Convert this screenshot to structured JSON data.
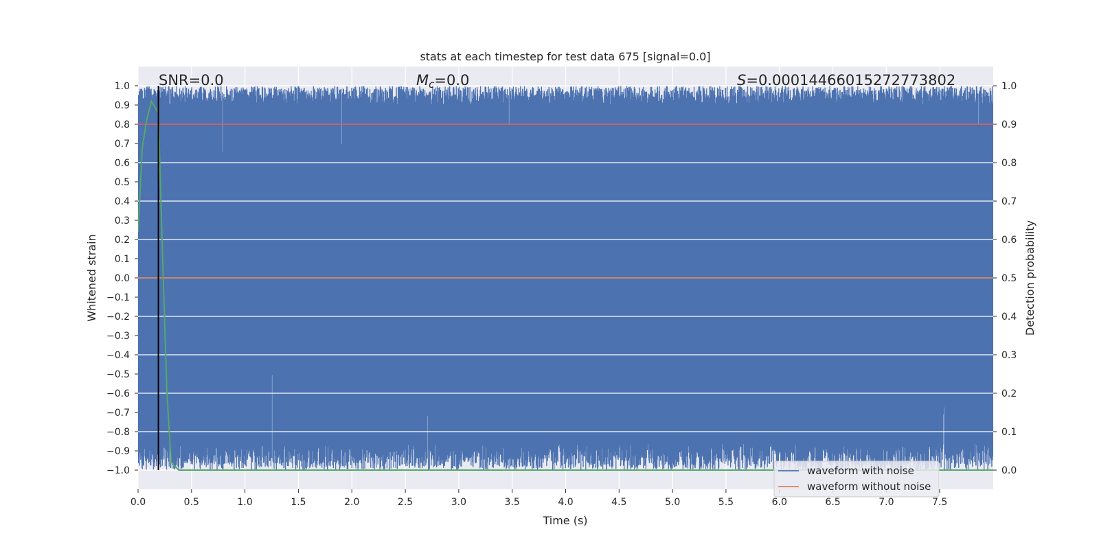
{
  "chart_data": {
    "type": "line",
    "title": "stats at each timestep for test data 675 [signal=0.0]",
    "xlabel": "Time (s)",
    "ylabel": "Whitened strain",
    "y2label": "Detection probability",
    "xlim": [
      0.0,
      8.0
    ],
    "ylim": [
      -1.1,
      1.1
    ],
    "y2lim": [
      -0.05,
      1.05
    ],
    "xticks": [
      "0.0",
      "0.5",
      "1.0",
      "1.5",
      "2.0",
      "2.5",
      "3.0",
      "3.5",
      "4.0",
      "4.5",
      "5.0",
      "5.5",
      "6.0",
      "6.5",
      "7.0",
      "7.5"
    ],
    "yticks": [
      "1.0",
      "0.9",
      "0.8",
      "0.7",
      "0.6",
      "0.5",
      "0.4",
      "0.3",
      "0.2",
      "0.1",
      "0.0",
      "−0.1",
      "−0.2",
      "−0.3",
      "−0.4",
      "−0.5",
      "−0.6",
      "−0.7",
      "−0.8",
      "−0.9",
      "−1.0"
    ],
    "y2ticks": [
      "1.0",
      "0.9",
      "0.8",
      "0.7",
      "0.6",
      "0.5",
      "0.4",
      "0.3",
      "0.2",
      "0.1",
      "0.0"
    ],
    "grid": true,
    "legend": "lower-right",
    "annotations": {
      "snr": "SNR=0.0",
      "mc_symbol": "M",
      "mc_sub": "c",
      "mc_value": "=0.0",
      "s_symbol": "S",
      "s_value": "=0.00014466015272773802"
    },
    "marker_x": 0.19,
    "series": [
      {
        "name": "waveform with noise",
        "color": "#4c72b0",
        "axis": "left",
        "description_values": "dense noise filling roughly -1.0 to 1.0"
      },
      {
        "name": "waveform without noise",
        "color": "#dd8452",
        "axis": "left",
        "x": [
          0.0,
          8.0
        ],
        "values": [
          0.0,
          0.0
        ]
      },
      {
        "color": "#55a868",
        "axis": "right",
        "x": [
          0.0,
          0.04,
          0.08,
          0.125,
          0.19,
          0.23,
          0.27,
          0.31,
          0.38,
          8.0
        ],
        "values": [
          0.62,
          0.84,
          0.91,
          0.96,
          0.93,
          0.55,
          0.2,
          0.02,
          0.0,
          0.0
        ]
      },
      {
        "color": "#dd5544",
        "axis": "right",
        "x": [
          0.0,
          8.0
        ],
        "values": [
          0.9,
          0.9
        ]
      }
    ]
  }
}
